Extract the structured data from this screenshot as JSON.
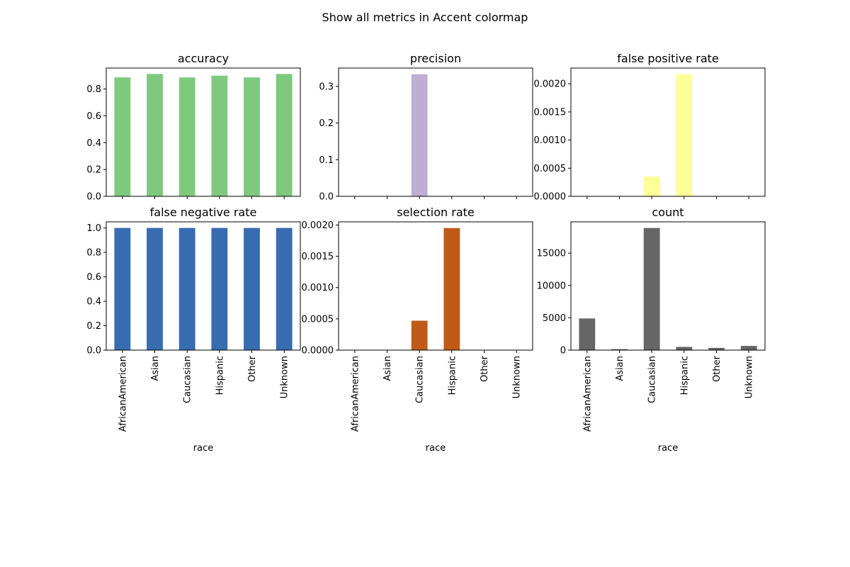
{
  "figure": {
    "suptitle": "Show all metrics in Accent colormap"
  },
  "chart_data": [
    {
      "type": "bar",
      "title": "accuracy",
      "xlabel": "",
      "ylabel": "",
      "categories": [
        "AfricanAmerican",
        "Asian",
        "Caucasian",
        "Hispanic",
        "Other",
        "Unknown"
      ],
      "values": [
        0.886,
        0.912,
        0.886,
        0.899,
        0.886,
        0.912
      ],
      "ylim": [
        0,
        0.956
      ],
      "yticks": [
        0.0,
        0.2,
        0.4,
        0.6,
        0.8
      ],
      "ytick_labels": [
        "0.0",
        "0.2",
        "0.4",
        "0.6",
        "0.8"
      ],
      "color": "#7fc97f",
      "show_xtick_labels": false,
      "grid": false
    },
    {
      "type": "bar",
      "title": "precision",
      "xlabel": "",
      "ylabel": "",
      "categories": [
        "AfricanAmerican",
        "Asian",
        "Caucasian",
        "Hispanic",
        "Other",
        "Unknown"
      ],
      "values": [
        0,
        0,
        0.333,
        0,
        0,
        0
      ],
      "ylim": [
        0,
        0.35
      ],
      "yticks": [
        0.0,
        0.1,
        0.2,
        0.3
      ],
      "ytick_labels": [
        "0.0",
        "0.1",
        "0.2",
        "0.3"
      ],
      "color": "#beaed4",
      "show_xtick_labels": false,
      "grid": false
    },
    {
      "type": "bar",
      "title": "false positive rate",
      "xlabel": "",
      "ylabel": "",
      "categories": [
        "AfricanAmerican",
        "Asian",
        "Caucasian",
        "Hispanic",
        "Other",
        "Unknown"
      ],
      "values": [
        0,
        0,
        0.00035,
        0.00217,
        0,
        0
      ],
      "ylim": [
        0,
        0.00228
      ],
      "yticks": [
        0.0,
        0.0005,
        0.001,
        0.0015,
        0.002
      ],
      "ytick_labels": [
        "0.0000",
        "0.0005",
        "0.0010",
        "0.0015",
        "0.0020"
      ],
      "color": "#fdff97",
      "show_xtick_labels": false,
      "grid": false
    },
    {
      "type": "bar",
      "title": "false negative rate",
      "xlabel": "race",
      "ylabel": "",
      "categories": [
        "AfricanAmerican",
        "Asian",
        "Caucasian",
        "Hispanic",
        "Other",
        "Unknown"
      ],
      "values": [
        1.0,
        1.0,
        1.0,
        1.0,
        1.0,
        1.0
      ],
      "ylim": [
        0,
        1.05
      ],
      "yticks": [
        0.0,
        0.2,
        0.4,
        0.6,
        0.8,
        1.0
      ],
      "ytick_labels": [
        "0.0",
        "0.2",
        "0.4",
        "0.6",
        "0.8",
        "1.0"
      ],
      "color": "#386cb0",
      "show_xtick_labels": true,
      "grid": false
    },
    {
      "type": "bar",
      "title": "selection rate",
      "xlabel": "race",
      "ylabel": "",
      "categories": [
        "AfricanAmerican",
        "Asian",
        "Caucasian",
        "Hispanic",
        "Other",
        "Unknown"
      ],
      "values": [
        0,
        0,
        0.00047,
        0.00195,
        0,
        0
      ],
      "ylim": [
        0,
        0.00205
      ],
      "yticks": [
        0.0,
        0.0005,
        0.001,
        0.0015,
        0.002
      ],
      "ytick_labels": [
        "0.0000",
        "0.0005",
        "0.0010",
        "0.0015",
        "0.0020"
      ],
      "color": "#bf5b17",
      "show_xtick_labels": true,
      "grid": false
    },
    {
      "type": "bar",
      "title": "count",
      "xlabel": "race",
      "ylabel": "",
      "categories": [
        "AfricanAmerican",
        "Asian",
        "Caucasian",
        "Hispanic",
        "Other",
        "Unknown"
      ],
      "values": [
        4900,
        150,
        18900,
        500,
        350,
        650
      ],
      "ylim": [
        0,
        19850
      ],
      "yticks": [
        0,
        5000,
        10000,
        15000
      ],
      "ytick_labels": [
        "0",
        "5000",
        "10000",
        "15000"
      ],
      "color": "#666666",
      "show_xtick_labels": true,
      "grid": false
    }
  ]
}
